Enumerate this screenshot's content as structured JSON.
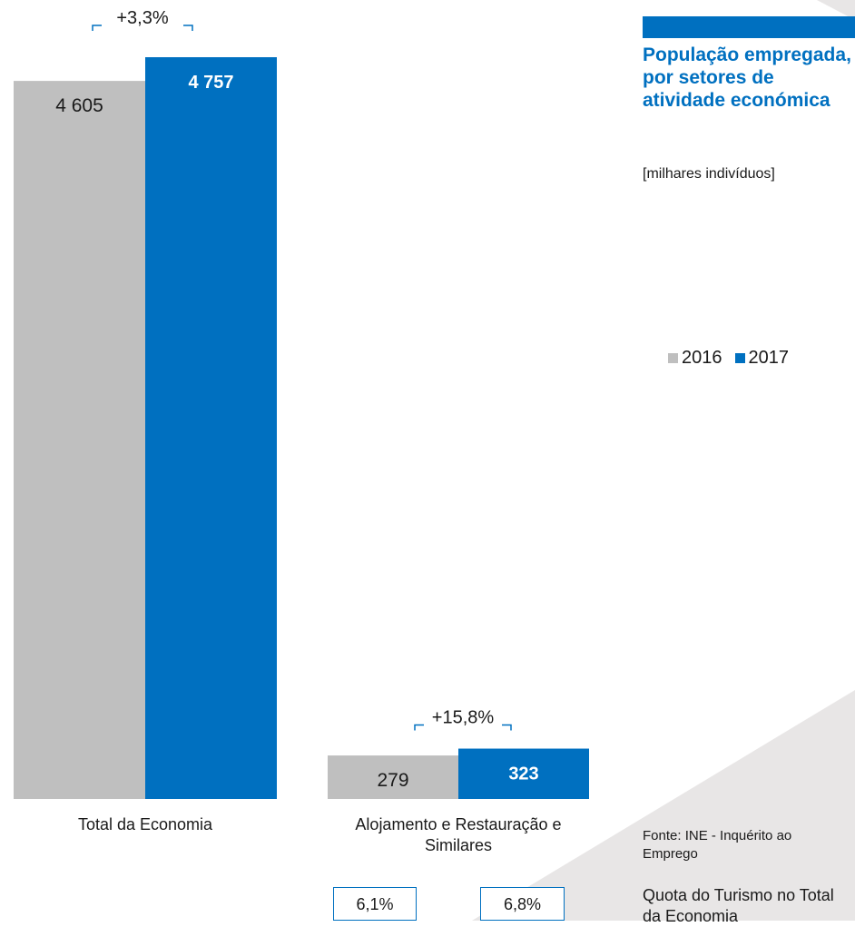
{
  "title": "População empregada, por setores de atividade económica",
  "subtitle": "[milhares indivíduos]",
  "source": "Fonte: INE - Inquérito ao Emprego",
  "quota_label": "Quota do Turismo no Total da Economia",
  "shares": {
    "y2016": "6,1%",
    "y2017": "6,8%"
  },
  "legend": [
    {
      "label": "2016",
      "color": "#bfbfbf"
    },
    {
      "label": "2017",
      "color": "#0070c0"
    }
  ],
  "colors": {
    "accent": "#0070c0",
    "bar_2016": "#bfbfbf",
    "bar_2017": "#0070c0"
  },
  "chart_data": {
    "type": "bar",
    "categories": [
      "Total da Economia",
      "Alojamento e Restauração e Similares"
    ],
    "series": [
      {
        "name": "2016",
        "values": [
          4605,
          279
        ],
        "labels": [
          "4 605",
          "279"
        ]
      },
      {
        "name": "2017",
        "values": [
          4757,
          323
        ],
        "labels": [
          "4 757",
          "323"
        ]
      }
    ],
    "growth": [
      "+3,3%",
      "+15,8%"
    ],
    "title": "População empregada, por setores de atividade económica",
    "ylabel": "[milhares indivíduos]",
    "legend_position": "right",
    "grid": false
  }
}
